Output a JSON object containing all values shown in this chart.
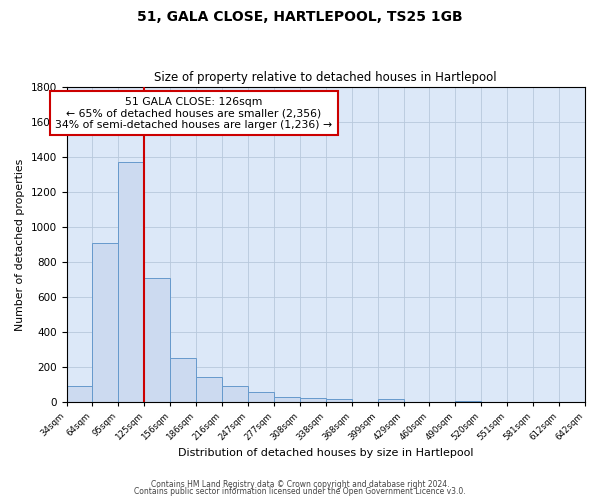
{
  "title": "51, GALA CLOSE, HARTLEPOOL, TS25 1GB",
  "subtitle": "Size of property relative to detached houses in Hartlepool",
  "xlabel": "Distribution of detached houses by size in Hartlepool",
  "ylabel": "Number of detached properties",
  "bar_values": [
    90,
    910,
    1370,
    710,
    250,
    145,
    90,
    55,
    30,
    25,
    15,
    0,
    15,
    0,
    0,
    5,
    0,
    0,
    0,
    0
  ],
  "bin_labels": [
    "34sqm",
    "64sqm",
    "95sqm",
    "125sqm",
    "156sqm",
    "186sqm",
    "216sqm",
    "247sqm",
    "277sqm",
    "308sqm",
    "338sqm",
    "368sqm",
    "399sqm",
    "429sqm",
    "460sqm",
    "490sqm",
    "520sqm",
    "551sqm",
    "581sqm",
    "612sqm",
    "642sqm"
  ],
  "bar_color": "#ccdaf0",
  "bar_edge_color": "#6699cc",
  "property_line_x": 3,
  "property_line_color": "#cc0000",
  "annotation_title": "51 GALA CLOSE: 126sqm",
  "annotation_line1": "← 65% of detached houses are smaller (2,356)",
  "annotation_line2": "34% of semi-detached houses are larger (1,236) →",
  "annotation_box_edge": "#cc0000",
  "ylim": [
    0,
    1800
  ],
  "yticks": [
    0,
    200,
    400,
    600,
    800,
    1000,
    1200,
    1400,
    1600,
    1800
  ],
  "footer1": "Contains HM Land Registry data © Crown copyright and database right 2024.",
  "footer2": "Contains public sector information licensed under the Open Government Licence v3.0.",
  "bg_color": "#ffffff",
  "plot_bg_color": "#dce8f8",
  "grid_color": "#b8c8dc"
}
